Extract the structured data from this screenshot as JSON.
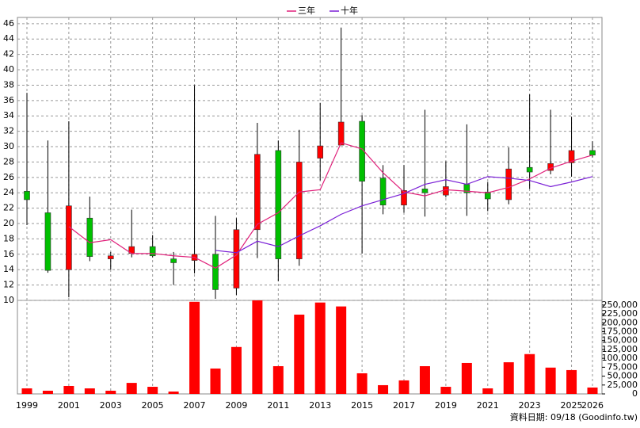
{
  "chart_data": {
    "type": "candlestick",
    "categories": [
      "1999",
      null,
      "2001",
      null,
      "2003",
      null,
      "2005",
      null,
      "2007",
      null,
      "2009",
      null,
      "2011",
      null,
      "2013",
      null,
      "2015",
      null,
      "2017",
      null,
      "2019",
      null,
      "2021",
      null,
      "2023",
      null,
      "2025",
      "2026"
    ],
    "open": [
      24.2,
      21.4,
      14.0,
      20.7,
      15.4,
      16.1,
      17.0,
      15.4,
      15.2,
      16.0,
      11.6,
      19.2,
      29.5,
      15.4,
      28.5,
      30.2,
      33.3,
      25.9,
      22.4,
      24.5,
      23.7,
      25.1,
      24.1,
      23.1,
      27.3,
      26.9,
      27.9,
      29.5
    ],
    "high": [
      37.0,
      30.8,
      33.3,
      23.5,
      16.3,
      21.8,
      18.5,
      16.3,
      38.0,
      21.0,
      20.7,
      33.1,
      30.8,
      32.2,
      35.7,
      45.5,
      34.1,
      27.6,
      27.6,
      34.8,
      28.1,
      32.9,
      25.4,
      29.9,
      36.8,
      34.8,
      33.9,
      30.7
    ],
    "low": [
      19.8,
      13.6,
      10.4,
      15.1,
      14.0,
      15.6,
      15.6,
      12.0,
      13.5,
      10.2,
      10.7,
      15.5,
      12.5,
      14.5,
      25.6,
      30.2,
      16.1,
      21.2,
      21.4,
      20.9,
      23.4,
      21.0,
      21.6,
      22.5,
      24.5,
      26.4,
      26.1,
      28.6
    ],
    "close": [
      23.1,
      13.9,
      22.3,
      15.7,
      15.8,
      17.0,
      15.8,
      14.9,
      16.0,
      11.4,
      19.2,
      29.0,
      15.4,
      28.0,
      30.1,
      33.2,
      25.5,
      22.4,
      24.3,
      24.0,
      24.8,
      24.0,
      23.2,
      27.1,
      26.7,
      27.8,
      29.5,
      28.9
    ],
    "up_color": "#ff0000",
    "down_color": "#00c000",
    "wick_color": "#000000",
    "series": [
      {
        "name": "三年",
        "color": "#e0207a",
        "values": [
          null,
          null,
          19.6,
          17.5,
          17.9,
          16.1,
          16.1,
          15.8,
          15.6,
          14.2,
          15.9,
          19.9,
          21.4,
          24.1,
          24.4,
          30.5,
          29.7,
          26.6,
          24.1,
          23.6,
          24.4,
          24.2,
          24.0,
          24.7,
          25.8,
          27.2,
          28.1,
          28.9
        ]
      },
      {
        "name": "十年",
        "color": "#7a1fd6",
        "values": [
          null,
          null,
          null,
          null,
          null,
          null,
          null,
          null,
          null,
          16.5,
          16.2,
          17.7,
          17.0,
          18.4,
          19.7,
          21.2,
          22.3,
          23.1,
          23.9,
          25.1,
          25.7,
          25.1,
          26.1,
          25.9,
          25.6,
          24.8,
          25.4,
          26.1
        ]
      }
    ],
    "ylim": [
      10,
      46.5
    ],
    "yticks": [
      10,
      12,
      14,
      16,
      18,
      20,
      22,
      24,
      26,
      28,
      30,
      32,
      34,
      36,
      38,
      40,
      42,
      44,
      46
    ],
    "volume": {
      "color": "#ff0000",
      "values": [
        15600,
        9000,
        22300,
        15600,
        9000,
        31000,
        20000,
        6700,
        259000,
        71400,
        132000,
        263000,
        78000,
        223000,
        257000,
        246000,
        58000,
        24600,
        38000,
        78000,
        20000,
        87000,
        15600,
        89000,
        112000,
        74000,
        67000,
        18000
      ],
      "ylim": [
        0,
        263000
      ],
      "yticks": [
        0,
        {
          "value": 25000,
          "label": "25,000"
        },
        {
          "value": 50000,
          "label": "50,000"
        },
        {
          "value": 75000,
          "label": "75,000"
        },
        {
          "value": 100000,
          "label": "100,000"
        },
        {
          "value": 125000,
          "label": "125,000"
        },
        {
          "value": 150000,
          "label": "150,000"
        },
        {
          "value": 175000,
          "label": "175,000"
        },
        {
          "value": 200000,
          "label": "200,000"
        },
        {
          "value": 225000,
          "label": "225,000"
        },
        {
          "value": 250000,
          "label": "250,000"
        }
      ]
    },
    "grid": true,
    "legend": "top",
    "footnote": "資料日期: 09/18  (Goodinfo.tw)"
  }
}
